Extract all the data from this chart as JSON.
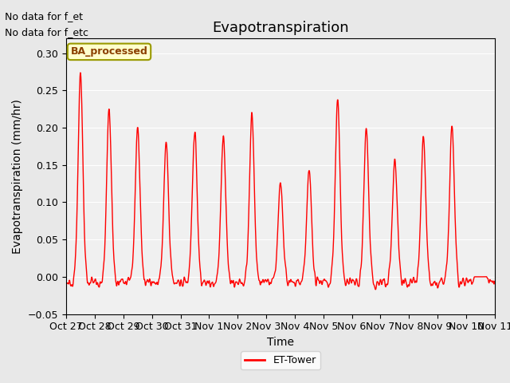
{
  "title": "Evapotranspiration",
  "ylabel": "Evapotranspiration (mm/hr)",
  "xlabel": "Time",
  "ylim": [
    -0.05,
    0.32
  ],
  "yticks": [
    -0.05,
    0.0,
    0.05,
    0.1,
    0.15,
    0.2,
    0.25,
    0.3
  ],
  "x_tick_labels": [
    "Oct 27",
    "Oct 28",
    "Oct 29",
    "Oct 30",
    "Oct 31",
    "Nov 1",
    "Nov 2",
    "Nov 3",
    "Nov 4",
    "Nov 5",
    "Nov 6",
    "Nov 7",
    "Nov 8",
    "Nov 9",
    "Nov 10",
    "Nov 11"
  ],
  "line_color": "red",
  "line_width": 1.0,
  "background_color": "#e8e8e8",
  "plot_bg_color": "#f0f0f0",
  "annotations_top_left": [
    "No data for f_et",
    "No data for f_etc"
  ],
  "box_label": "BA_processed",
  "box_facecolor": "#ffffcc",
  "box_edgecolor": "#999900",
  "legend_label": "ET-Tower",
  "legend_line_color": "red",
  "title_fontsize": 13,
  "axis_label_fontsize": 10,
  "tick_fontsize": 9
}
